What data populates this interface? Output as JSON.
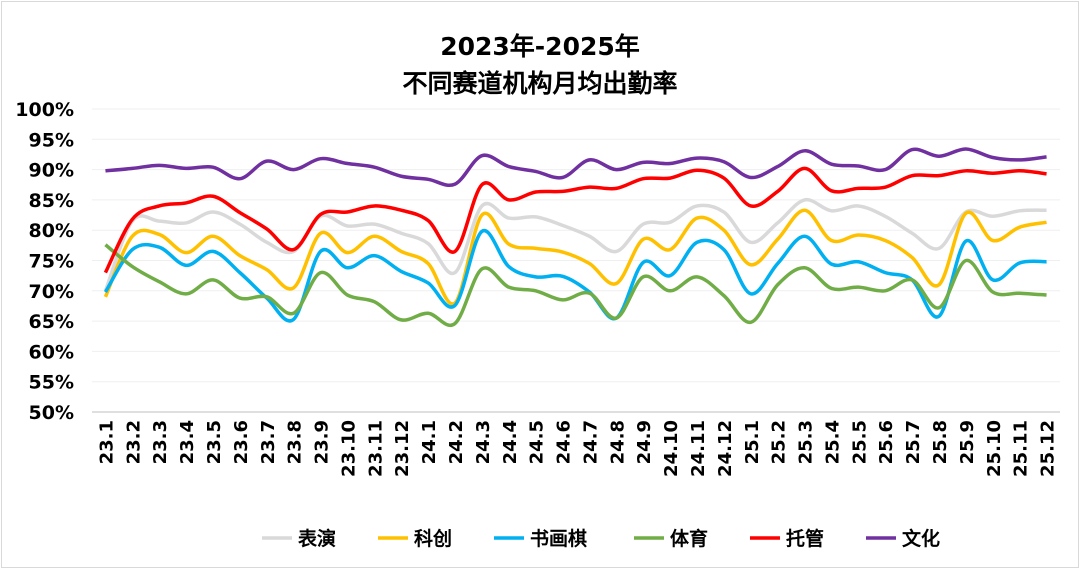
{
  "chart_data": {
    "type": "line",
    "title_lines": [
      "2023年-2025年",
      "不同赛道机构月均出勤率"
    ],
    "xlabel": "",
    "ylabel": "",
    "ylim": [
      50,
      100
    ],
    "y_ticks": [
      "50%",
      "55%",
      "60%",
      "65%",
      "70%",
      "75%",
      "80%",
      "85%",
      "90%",
      "95%",
      "100%"
    ],
    "grid": true,
    "smooth": true,
    "legend_position": "bottom",
    "categories": [
      "23.1",
      "23.2",
      "23.3",
      "23.4",
      "23.5",
      "23.6",
      "23.7",
      "23.8",
      "23.9",
      "23.10",
      "23.11",
      "23.12",
      "24.1",
      "24.2",
      "24.3",
      "24.4",
      "24.5",
      "24.6",
      "24.7",
      "24.8",
      "24.9",
      "24.10",
      "24.11",
      "24.12",
      "25.1",
      "25.2",
      "25.3",
      "25.4",
      "25.5",
      "25.6",
      "25.7",
      "25.8",
      "25.9",
      "25.10",
      "25.11",
      "25.12"
    ],
    "series": [
      {
        "name": "表演",
        "color": "#d9d9d9",
        "values": [
          70.0,
          81.5,
          81.5,
          81.2,
          83.0,
          81.0,
          78.0,
          76.5,
          82.3,
          80.7,
          81.0,
          79.5,
          77.8,
          73.0,
          84.0,
          82.0,
          82.2,
          80.8,
          79.0,
          76.5,
          81.0,
          81.3,
          84.0,
          83.0,
          78.0,
          81.2,
          85.0,
          83.2,
          84.0,
          82.3,
          79.5,
          77.0,
          83.0,
          82.3,
          83.2,
          83.3
        ]
      },
      {
        "name": "科创",
        "color": "#ffc000",
        "values": [
          69.0,
          79.0,
          79.3,
          76.3,
          79.0,
          75.8,
          73.5,
          70.5,
          79.5,
          76.3,
          79.0,
          76.5,
          74.5,
          68.0,
          82.5,
          77.7,
          77.0,
          76.4,
          74.5,
          71.2,
          78.5,
          76.8,
          82.0,
          80.0,
          74.3,
          78.5,
          83.3,
          78.3,
          79.2,
          78.3,
          75.5,
          71.0,
          82.8,
          78.3,
          80.5,
          81.3
        ]
      },
      {
        "name": "书画棋",
        "color": "#00b0f0",
        "values": [
          69.8,
          76.8,
          77.2,
          74.2,
          76.5,
          73.0,
          68.8,
          65.3,
          76.5,
          73.8,
          75.8,
          73.2,
          71.3,
          67.6,
          79.8,
          74.0,
          72.3,
          72.4,
          69.8,
          65.5,
          74.7,
          72.5,
          78.0,
          76.8,
          69.5,
          74.5,
          79.0,
          74.4,
          74.8,
          73.0,
          71.8,
          65.8,
          78.2,
          71.8,
          74.6,
          74.8
        ]
      },
      {
        "name": "体育",
        "color": "#70ad47",
        "values": [
          77.6,
          74.0,
          71.5,
          69.5,
          71.8,
          68.8,
          69.0,
          66.3,
          73.0,
          69.3,
          68.2,
          65.2,
          66.3,
          64.6,
          73.6,
          70.6,
          70.0,
          68.5,
          69.6,
          65.5,
          72.3,
          70.0,
          72.3,
          69.2,
          64.8,
          71.0,
          73.8,
          70.4,
          70.6,
          70.0,
          71.8,
          67.2,
          75.0,
          69.8,
          69.6,
          69.3
        ]
      },
      {
        "name": "托管",
        "color": "#ff0000",
        "values": [
          73.0,
          81.8,
          84.0,
          84.5,
          85.6,
          82.9,
          80.2,
          76.8,
          82.6,
          83.0,
          84.0,
          83.3,
          81.6,
          76.5,
          87.5,
          85.0,
          86.3,
          86.4,
          87.1,
          86.9,
          88.5,
          88.6,
          89.9,
          88.6,
          84.0,
          86.4,
          90.2,
          86.5,
          86.9,
          87.1,
          89.0,
          89.0,
          89.8,
          89.4,
          89.8,
          89.3
        ]
      },
      {
        "name": "文化",
        "color": "#7030a0",
        "values": [
          89.8,
          90.2,
          90.7,
          90.2,
          90.4,
          88.5,
          91.4,
          90.0,
          91.8,
          91.0,
          90.4,
          88.9,
          88.4,
          87.6,
          92.3,
          90.5,
          89.7,
          88.7,
          91.6,
          90.0,
          91.2,
          91.0,
          91.9,
          91.3,
          88.7,
          90.5,
          93.1,
          90.9,
          90.6,
          90.0,
          93.3,
          92.2,
          93.4,
          92.0,
          91.6,
          92.1
        ]
      }
    ]
  }
}
